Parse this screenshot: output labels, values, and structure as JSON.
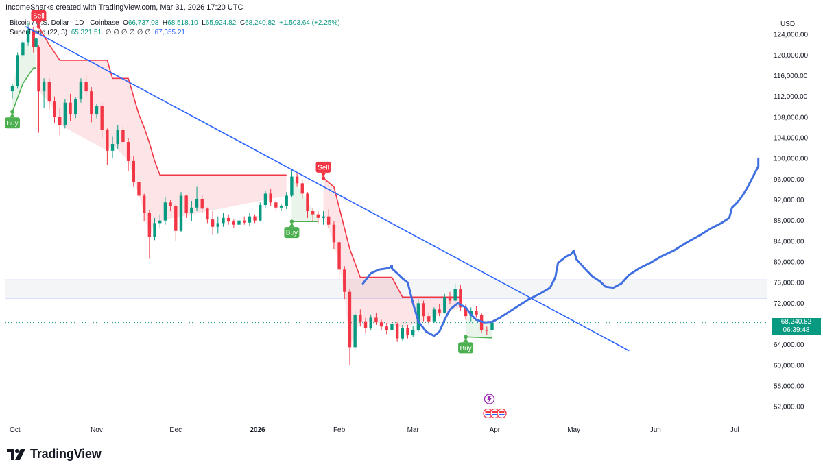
{
  "header": {
    "author_line": "IncomeSharks created with TradingView.com, Mar 31, 2026 17:20 UTC"
  },
  "symbol": {
    "name": "Bitcoin / U.S. Dollar · 1D · Coinbase",
    "open_label": "O",
    "open": "66,737.08",
    "high_label": "H",
    "high": "68,518.10",
    "low_label": "L",
    "low": "65,924.82",
    "close_label": "C",
    "close": "68,240.82",
    "change": "+1,503.64 (+2.25%)"
  },
  "indicator": {
    "name": "SuperTrend (22, 3)",
    "value1": "65,321.51",
    "placeholders": "∅ ∅ ∅ ∅ ∅ ∅",
    "value2": "67,355.21"
  },
  "price_axis": {
    "currency": "USD",
    "last_price": "68,240.82",
    "countdown": "06:39:48"
  },
  "brand": {
    "name": "TradingView"
  },
  "colors": {
    "up": "#089981",
    "down": "#f23645",
    "trendline": "#2962ff",
    "supertrend_down": "#f23645",
    "supertrend_up": "#4caf50",
    "fill_down": "rgba(242,54,69,0.13)",
    "fill_up": "rgba(76,175,80,0.12)"
  },
  "chart_data": {
    "type": "candlestick",
    "y_axis": {
      "range": [
        49500,
        128000
      ],
      "ticks": [
        52000,
        56000,
        60000,
        64000,
        68000,
        72000,
        76000,
        80000,
        84000,
        88000,
        92000,
        96000,
        100000,
        104000,
        108000,
        112000,
        116000,
        120000,
        124000
      ],
      "tick_labels": [
        "52,000.00",
        "56,000.00",
        "60,000.00",
        "64,000.00",
        "68,000.00",
        "72,000.00",
        "76,000.00",
        "80,000.00",
        "84,000.00",
        "88,000.00",
        "92,000.00",
        "96,000.00",
        "100,000.00",
        "104,000.00",
        "108,000.00",
        "112,000.00",
        "116,000.00",
        "120,000.00",
        "124,000.00"
      ]
    },
    "x_axis": {
      "range": [
        "2025-09-30",
        "2026-07-08"
      ],
      "ticks": [
        {
          "date": "2025-10-01",
          "label": "Oct",
          "bold": false
        },
        {
          "date": "2025-11-01",
          "label": "Nov",
          "bold": false
        },
        {
          "date": "2025-12-01",
          "label": "Dec",
          "bold": false
        },
        {
          "date": "2026-01-01",
          "label": "2026",
          "bold": true
        },
        {
          "date": "2026-02-01",
          "label": "Feb",
          "bold": false
        },
        {
          "date": "2026-03-01",
          "label": "Mar",
          "bold": false
        },
        {
          "date": "2026-04-01",
          "label": "Apr",
          "bold": false
        },
        {
          "date": "2026-05-01",
          "label": "May",
          "bold": false
        },
        {
          "date": "2026-06-01",
          "label": "Jun",
          "bold": false
        },
        {
          "date": "2026-07-01",
          "label": "Jul",
          "bold": false
        }
      ]
    },
    "candles": [
      [
        "2025-09-30",
        113000,
        114500,
        111600,
        114000
      ],
      [
        "2025-10-02",
        114000,
        120500,
        113500,
        120000
      ],
      [
        "2025-10-04",
        120000,
        123000,
        119500,
        122500
      ],
      [
        "2025-10-06",
        122500,
        126200,
        121800,
        124800
      ],
      [
        "2025-10-08",
        124800,
        125500,
        120500,
        121500
      ],
      [
        "2025-10-09",
        121500,
        123800,
        120800,
        123200
      ],
      [
        "2025-10-10",
        121500,
        122000,
        105000,
        113000
      ],
      [
        "2025-10-12",
        113000,
        115500,
        109800,
        114800
      ],
      [
        "2025-10-14",
        114800,
        115500,
        109500,
        111000
      ],
      [
        "2025-10-16",
        111000,
        112000,
        106800,
        108000
      ],
      [
        "2025-10-18",
        108000,
        109800,
        104500,
        106500
      ],
      [
        "2025-10-20",
        106500,
        111500,
        105800,
        110800
      ],
      [
        "2025-10-22",
        110800,
        112500,
        107200,
        108500
      ],
      [
        "2025-10-24",
        108500,
        111800,
        107800,
        111500
      ],
      [
        "2025-10-26",
        111500,
        115500,
        110800,
        114800
      ],
      [
        "2025-10-28",
        114800,
        116200,
        112000,
        113000
      ],
      [
        "2025-10-30",
        113000,
        113800,
        107000,
        108500
      ],
      [
        "2025-11-01",
        108500,
        110500,
        107800,
        110200
      ],
      [
        "2025-11-03",
        110200,
        110800,
        104000,
        105500
      ],
      [
        "2025-11-05",
        105500,
        105800,
        98800,
        101500
      ],
      [
        "2025-11-07",
        101500,
        104200,
        100000,
        102800
      ],
      [
        "2025-11-09",
        102800,
        106500,
        101800,
        105500
      ],
      [
        "2025-11-11",
        105500,
        106500,
        102500,
        103200
      ],
      [
        "2025-11-13",
        103200,
        104000,
        97500,
        99500
      ],
      [
        "2025-11-15",
        99500,
        100500,
        94500,
        95500
      ],
      [
        "2025-11-17",
        95500,
        96500,
        91500,
        92800
      ],
      [
        "2025-11-19",
        92800,
        93200,
        87800,
        89500
      ],
      [
        "2025-11-21",
        89500,
        90000,
        80600,
        84800
      ],
      [
        "2025-11-23",
        84800,
        88500,
        84200,
        87500
      ],
      [
        "2025-11-25",
        87500,
        89200,
        86500,
        88000
      ],
      [
        "2025-11-27",
        88000,
        92500,
        87200,
        91500
      ],
      [
        "2025-11-29",
        91500,
        92000,
        89800,
        90800
      ],
      [
        "2025-12-01",
        90800,
        91200,
        84000,
        86000
      ],
      [
        "2025-12-03",
        86000,
        93500,
        85800,
        92800
      ],
      [
        "2025-12-05",
        92800,
        93000,
        88500,
        89500
      ],
      [
        "2025-12-07",
        89500,
        91800,
        87800,
        90500
      ],
      [
        "2025-12-09",
        90500,
        94500,
        89800,
        92200
      ],
      [
        "2025-12-11",
        92200,
        93000,
        89500,
        90300
      ],
      [
        "2025-12-13",
        90300,
        90500,
        87500,
        88200
      ],
      [
        "2025-12-15",
        88200,
        89800,
        85200,
        86800
      ],
      [
        "2025-12-17",
        86800,
        88800,
        85500,
        87500
      ],
      [
        "2025-12-19",
        87500,
        89500,
        86800,
        88500
      ],
      [
        "2025-12-21",
        88500,
        89200,
        87200,
        87800
      ],
      [
        "2025-12-23",
        87800,
        88200,
        86500,
        87200
      ],
      [
        "2025-12-25",
        87200,
        88500,
        86800,
        88000
      ],
      [
        "2025-12-27",
        88000,
        88800,
        87200,
        87600
      ],
      [
        "2025-12-29",
        87600,
        89500,
        87000,
        88800
      ],
      [
        "2025-12-31",
        88800,
        89200,
        87500,
        88000
      ],
      [
        "2026-01-02",
        88000,
        91500,
        87800,
        91000
      ],
      [
        "2026-01-04",
        91000,
        93800,
        90500,
        93200
      ],
      [
        "2026-01-06",
        93200,
        94200,
        90800,
        91500
      ],
      [
        "2026-01-08",
        91500,
        92000,
        89800,
        90500
      ],
      [
        "2026-01-10",
        90500,
        91200,
        89800,
        90800
      ],
      [
        "2026-01-12",
        90800,
        93500,
        90200,
        92800
      ],
      [
        "2026-01-14",
        92800,
        97800,
        92500,
        96500
      ],
      [
        "2026-01-16",
        96500,
        97200,
        94500,
        95200
      ],
      [
        "2026-01-18",
        95200,
        95800,
        92200,
        93200
      ],
      [
        "2026-01-20",
        93200,
        93500,
        88500,
        89800
      ],
      [
        "2026-01-22",
        89800,
        90500,
        87800,
        89200
      ],
      [
        "2026-01-24",
        89200,
        89800,
        87500,
        88500
      ],
      [
        "2026-01-26",
        88500,
        89800,
        87200,
        88800
      ],
      [
        "2026-01-28",
        88800,
        90200,
        86500,
        87200
      ],
      [
        "2026-01-30",
        87200,
        87800,
        82500,
        83800
      ],
      [
        "2026-02-01",
        83800,
        84200,
        76500,
        78500
      ],
      [
        "2026-02-03",
        78500,
        79200,
        72800,
        74200
      ],
      [
        "2026-02-05",
        74200,
        74800,
        60000,
        63500
      ],
      [
        "2026-02-07",
        63500,
        70500,
        62800,
        69800
      ],
      [
        "2026-02-09",
        69800,
        70800,
        67500,
        68500
      ],
      [
        "2026-02-11",
        68500,
        69200,
        66200,
        67200
      ],
      [
        "2026-02-13",
        67200,
        69800,
        66800,
        69200
      ],
      [
        "2026-02-15",
        69200,
        70200,
        67800,
        68300
      ],
      [
        "2026-02-17",
        68300,
        68800,
        66800,
        67500
      ],
      [
        "2026-02-19",
        67500,
        68200,
        66000,
        66800
      ],
      [
        "2026-02-21",
        66800,
        68500,
        66500,
        68000
      ],
      [
        "2026-02-23",
        68000,
        68300,
        64500,
        65200
      ],
      [
        "2026-02-25",
        65200,
        67800,
        64800,
        67200
      ],
      [
        "2026-02-27",
        67200,
        67800,
        65200,
        65800
      ],
      [
        "2026-03-01",
        65800,
        67500,
        65500,
        66800
      ],
      [
        "2026-03-03",
        66800,
        72800,
        66500,
        72000
      ],
      [
        "2026-03-05",
        72000,
        72500,
        68500,
        69500
      ],
      [
        "2026-03-07",
        69500,
        70200,
        67800,
        68500
      ],
      [
        "2026-03-09",
        68500,
        71200,
        68200,
        70800
      ],
      [
        "2026-03-11",
        70800,
        71800,
        69500,
        70200
      ],
      [
        "2026-03-13",
        70200,
        73800,
        70000,
        73200
      ],
      [
        "2026-03-15",
        73200,
        74200,
        71800,
        72500
      ],
      [
        "2026-03-17",
        72500,
        75800,
        72200,
        74800
      ],
      [
        "2026-03-19",
        74800,
        75500,
        70500,
        71200
      ],
      [
        "2026-03-21",
        71200,
        71800,
        68800,
        69500
      ],
      [
        "2026-03-23",
        69500,
        71200,
        68500,
        70500
      ],
      [
        "2026-03-25",
        70500,
        71500,
        69200,
        69800
      ],
      [
        "2026-03-27",
        69800,
        70200,
        66200,
        66800
      ],
      [
        "2026-03-29",
        66800,
        67500,
        65800,
        66737
      ],
      [
        "2026-03-31",
        66737,
        68518,
        65925,
        68241
      ]
    ],
    "supertrend": [
      [
        "2025-09-30",
        109000,
        "up"
      ],
      [
        "2025-10-04",
        114500,
        "up"
      ],
      [
        "2025-10-08",
        117500,
        "up"
      ],
      [
        "2025-10-09",
        117500,
        "up"
      ],
      [
        "2025-10-10",
        125500,
        "down"
      ],
      [
        "2025-10-14",
        122000,
        "down"
      ],
      [
        "2025-10-18",
        119000,
        "down"
      ],
      [
        "2025-11-05",
        119000,
        "down"
      ],
      [
        "2025-11-07",
        115500,
        "down"
      ],
      [
        "2025-11-13",
        115500,
        "down"
      ],
      [
        "2025-11-17",
        108500,
        "down"
      ],
      [
        "2025-11-19",
        106000,
        "down"
      ],
      [
        "2025-11-21",
        103000,
        "down"
      ],
      [
        "2025-11-23",
        99500,
        "down"
      ],
      [
        "2025-11-25",
        96800,
        "down"
      ],
      [
        "2026-01-12",
        96800,
        "down"
      ],
      [
        "2026-01-14",
        87800,
        "up"
      ],
      [
        "2026-01-24",
        87800,
        "up"
      ],
      [
        "2026-01-26",
        96200,
        "down"
      ],
      [
        "2026-01-30",
        94500,
        "down"
      ],
      [
        "2026-02-03",
        86500,
        "down"
      ],
      [
        "2026-02-05",
        82500,
        "down"
      ],
      [
        "2026-02-09",
        77000,
        "down"
      ],
      [
        "2026-02-21",
        77000,
        "down"
      ],
      [
        "2026-02-25",
        73200,
        "down"
      ],
      [
        "2026-03-19",
        73200,
        "down"
      ],
      [
        "2026-03-21",
        65500,
        "up"
      ],
      [
        "2026-03-31",
        65300,
        "up"
      ]
    ],
    "signals": [
      {
        "date": "2025-09-30",
        "price": 109000,
        "label": "Buy",
        "type": "buy"
      },
      {
        "date": "2025-10-10",
        "price": 125500,
        "label": "Sell",
        "type": "sell"
      },
      {
        "date": "2026-01-14",
        "price": 87800,
        "label": "Buy",
        "type": "buy"
      },
      {
        "date": "2026-01-26",
        "price": 96200,
        "label": "Sell",
        "type": "sell"
      },
      {
        "date": "2026-03-21",
        "price": 65500,
        "label": "Buy",
        "type": "buy"
      }
    ],
    "trendline": [
      [
        "2025-10-05",
        125500
      ],
      [
        "2026-05-22",
        62800
      ]
    ],
    "resistance_zone": [
      73000,
      76500
    ],
    "projection_path": [
      [
        "2026-02-10",
        75800
      ],
      [
        "2026-02-13",
        77800
      ],
      [
        "2026-02-16",
        78500
      ],
      [
        "2026-02-20",
        78800
      ],
      [
        "2026-02-21",
        79300
      ],
      [
        "2026-02-21",
        78700
      ],
      [
        "2026-02-23",
        77800
      ],
      [
        "2026-02-25",
        76800
      ],
      [
        "2026-02-27",
        76000
      ],
      [
        "2026-03-01",
        72000
      ],
      [
        "2026-03-03",
        68500
      ],
      [
        "2026-03-06",
        66500
      ],
      [
        "2026-03-09",
        65700
      ],
      [
        "2026-03-11",
        66500
      ],
      [
        "2026-03-13",
        68800
      ],
      [
        "2026-03-15",
        70800
      ],
      [
        "2026-03-18",
        72000
      ],
      [
        "2026-03-21",
        71200
      ],
      [
        "2026-03-23",
        69800
      ],
      [
        "2026-03-25",
        68800
      ],
      [
        "2026-03-28",
        68300
      ],
      [
        "2026-03-31",
        68400
      ],
      [
        "2026-04-03",
        69200
      ],
      [
        "2026-04-06",
        70200
      ],
      [
        "2026-04-10",
        71500
      ],
      [
        "2026-04-14",
        72800
      ],
      [
        "2026-04-18",
        73800
      ],
      [
        "2026-04-22",
        75000
      ],
      [
        "2026-04-24",
        77000
      ],
      [
        "2026-04-25",
        79800
      ],
      [
        "2026-04-28",
        81000
      ],
      [
        "2026-04-30",
        81500
      ],
      [
        "2026-05-01",
        82200
      ],
      [
        "2026-05-02",
        80500
      ],
      [
        "2026-05-05",
        78800
      ],
      [
        "2026-05-08",
        77200
      ],
      [
        "2026-05-11",
        76200
      ],
      [
        "2026-05-13",
        75200
      ],
      [
        "2026-05-16",
        75000
      ],
      [
        "2026-05-19",
        75800
      ],
      [
        "2026-05-22",
        77500
      ],
      [
        "2026-05-26",
        78800
      ],
      [
        "2026-05-30",
        79800
      ],
      [
        "2026-06-03",
        81000
      ],
      [
        "2026-06-08",
        82200
      ],
      [
        "2026-06-13",
        83800
      ],
      [
        "2026-06-18",
        85200
      ],
      [
        "2026-06-22",
        86500
      ],
      [
        "2026-06-26",
        87500
      ],
      [
        "2026-06-29",
        88500
      ],
      [
        "2026-06-30",
        90500
      ],
      [
        "2026-07-02",
        91500
      ],
      [
        "2026-07-04",
        92800
      ],
      [
        "2026-07-06",
        94500
      ],
      [
        "2026-07-08",
        96500
      ],
      [
        "2026-07-10",
        98500
      ],
      [
        "2026-07-10",
        100000
      ]
    ],
    "dotted_level": 68240.82,
    "event_icons": [
      {
        "date": "2026-03-31",
        "count": 3,
        "kind": "economic-events"
      },
      {
        "date": "2026-03-31",
        "count": 1,
        "kind": "alert"
      }
    ]
  }
}
